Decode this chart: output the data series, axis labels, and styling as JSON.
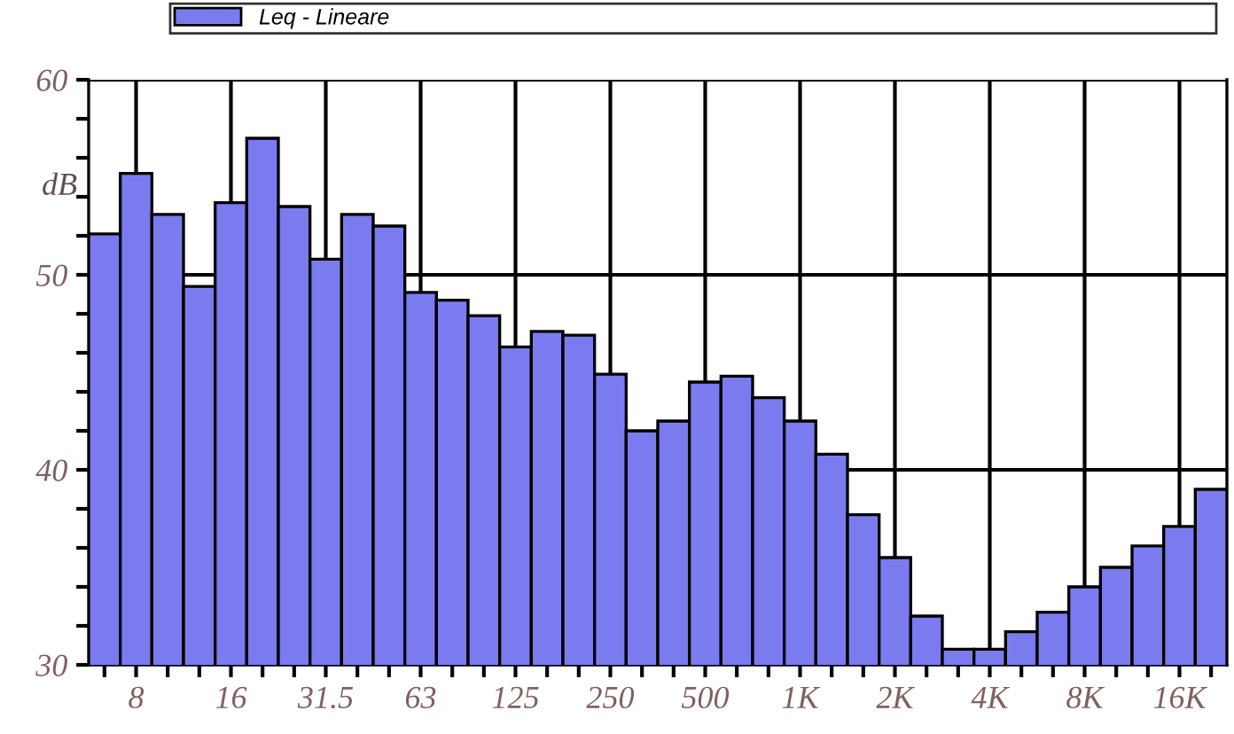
{
  "chart_data": {
    "type": "bar",
    "ylabel": "dB",
    "categories": [
      null,
      "8",
      null,
      null,
      "16",
      null,
      null,
      "31.5",
      null,
      null,
      "63",
      null,
      null,
      "125",
      null,
      null,
      "250",
      null,
      null,
      "500",
      null,
      null,
      "1K",
      null,
      null,
      "2K",
      null,
      null,
      "4K",
      null,
      null,
      "8K",
      null,
      null,
      "16K",
      null
    ],
    "series": [
      {
        "name": "Leq - Lineare",
        "color": "#7b7bf0",
        "values": [
          52.1,
          55.2,
          53.1,
          49.4,
          53.7,
          57.0,
          53.5,
          50.8,
          53.1,
          52.5,
          49.1,
          48.7,
          47.9,
          46.3,
          47.1,
          46.9,
          44.9,
          42.0,
          42.5,
          44.5,
          44.8,
          43.7,
          42.5,
          40.8,
          37.7,
          35.5,
          32.5,
          30.8,
          30.8,
          31.7,
          32.7,
          34.0,
          35.0,
          36.1,
          37.1,
          39.0
        ]
      }
    ],
    "ylim": [
      30,
      60
    ],
    "yticks": [
      30,
      {
        "value": 32,
        "label": null
      },
      {
        "value": 34,
        "label": null
      },
      {
        "value": 36,
        "label": null
      },
      {
        "value": 38,
        "label": null
      },
      40,
      {
        "value": 42,
        "label": null
      },
      {
        "value": 44,
        "label": null
      },
      {
        "value": 46,
        "label": null
      },
      {
        "value": 48,
        "label": null
      },
      50,
      {
        "value": 52,
        "label": null
      },
      {
        "value": 54,
        "label": null
      },
      {
        "value": 56,
        "label": null
      },
      {
        "value": 58,
        "label": null
      },
      60
    ],
    "grid": true,
    "legend": "top"
  }
}
